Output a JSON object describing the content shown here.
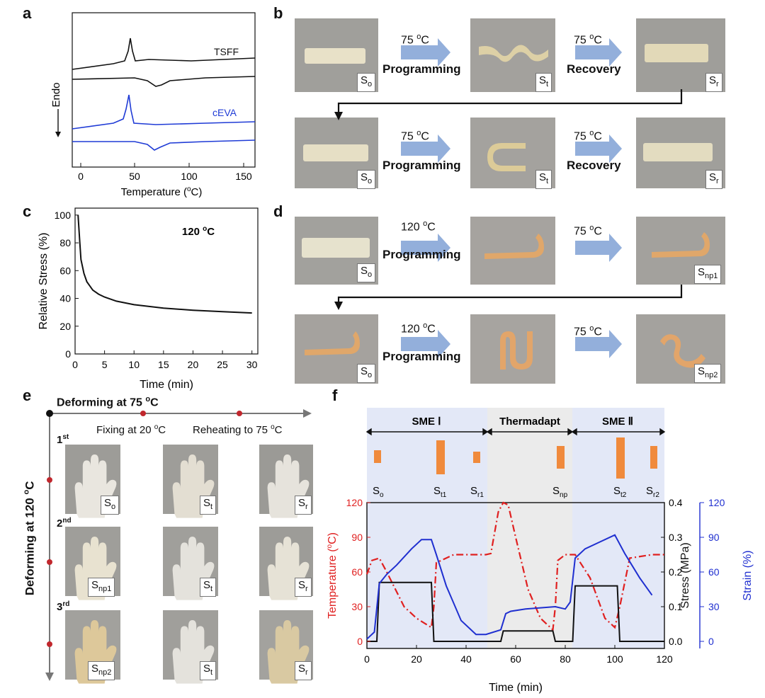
{
  "panel_letters": {
    "a": "a",
    "b": "b",
    "c": "c",
    "d": "d",
    "e": "e",
    "f": "f"
  },
  "panel_a": {
    "ylabel": "Endo",
    "xlabel": "Temperature (",
    "xlabel_unit": "C)",
    "xlabel_sup": "o",
    "curve_labels": [
      "TSFF",
      "cEVA"
    ],
    "x_ticks": [
      "0",
      "50",
      "100",
      "150"
    ],
    "colors": {
      "TSFF": "#111111",
      "cEVA": "#1f3bd6"
    }
  },
  "panel_b": {
    "temp": "75 ",
    "temp_unit": "C",
    "temp_sup": "o",
    "programming": "Programming",
    "recovery": "Recovery",
    "labels_row1": [
      "S",
      "S",
      "S"
    ],
    "subs_row1": [
      "o",
      "t",
      "r"
    ],
    "labels_row2": [
      "S",
      "S",
      "S"
    ],
    "subs_row2": [
      "o",
      "t",
      "r"
    ]
  },
  "panel_d": {
    "temp_prog": "120 ",
    "temp_rec": "75 ",
    "temp_unit": "C",
    "temp_sup": "o",
    "programming": "Programming",
    "subs_row1": [
      "o",
      "np1"
    ],
    "subs_row2": [
      "o",
      "np2"
    ],
    "S": "S"
  },
  "panel_e": {
    "deform75": "Deforming at 75 ",
    "deform120": "Deforming at 120 ",
    "unit": "C",
    "sup": "o",
    "fixing": "Fixing at 20 ",
    "reheating": "Reheating to 75 ",
    "rows": [
      "1",
      "2",
      "3"
    ],
    "row_sups": [
      "st",
      "nd",
      "rd"
    ],
    "S": "S",
    "subs": [
      [
        "o",
        "t",
        "r"
      ],
      [
        "np1",
        "t",
        "r"
      ],
      [
        "np2",
        "t",
        "r"
      ]
    ]
  },
  "panel_f": {
    "phases": [
      "SME Ⅰ",
      "Thermadapt",
      "SME Ⅱ"
    ],
    "state_labels": [
      "o",
      "t1",
      "r1",
      "np",
      "t2",
      "r2"
    ],
    "S": "S",
    "xlabel": "Time (min)",
    "ylabel_temp": "Temperature (",
    "ylabel_temp_unit": "C)",
    "ylabel_stress": "Stress (MPa)",
    "ylabel_strain": "Strain (%)",
    "sup": "o",
    "x_ticks": [
      "0",
      "20",
      "40",
      "60",
      "80",
      "100",
      "120"
    ],
    "temp_ticks": [
      "0",
      "30",
      "60",
      "90",
      "120"
    ],
    "stress_ticks": [
      "0.0",
      "0.1",
      "0.2",
      "0.3",
      "0.4"
    ],
    "strain_ticks": [
      "0",
      "30",
      "60",
      "90",
      "120"
    ],
    "colors": {
      "temperature": "#e02020",
      "stress": "#111111",
      "strain": "#1f2fd0",
      "phase_bg": "#e3e8f7"
    }
  },
  "chart_data": [
    {
      "type": "line",
      "title": "",
      "xlabel": "Temperature (oC)",
      "ylabel": "Endo",
      "xlim": [
        -8,
        152
      ],
      "series": [
        {
          "name": "TSFF",
          "x": [
            -8,
            30,
            40,
            44,
            46,
            48,
            52,
            60,
            100,
            152
          ],
          "y": [
            0,
            0.1,
            0.3,
            0.8,
            1.7,
            0.6,
            0.1,
            0.2,
            0.5,
            0.7
          ]
        },
        {
          "name": "cEVA",
          "x": [
            -8,
            30,
            40,
            43,
            45,
            47,
            50,
            60,
            100,
            152
          ],
          "y": [
            0,
            0.1,
            0.3,
            0.9,
            2.0,
            0.5,
            0.05,
            0.1,
            0.3,
            0.4
          ]
        }
      ]
    },
    {
      "type": "line",
      "title": "120 oC",
      "xlabel": "Time (min)",
      "ylabel": "Relative Stress (%)",
      "xlim": [
        0,
        31
      ],
      "ylim": [
        0,
        105
      ],
      "series": [
        {
          "name": "",
          "x": [
            0.5,
            0.8,
            1,
            1.5,
            2,
            3,
            4,
            5,
            7,
            10,
            15,
            20,
            25,
            30
          ],
          "y": [
            100,
            80,
            68,
            58,
            52,
            46,
            43,
            41,
            38,
            35.5,
            33,
            31.5,
            30.5,
            29.5
          ]
        }
      ],
      "x_ticks": [
        "0",
        "5",
        "10",
        "15",
        "20",
        "25",
        "30"
      ],
      "y_ticks": [
        "0",
        "20",
        "40",
        "60",
        "80",
        "100"
      ]
    },
    {
      "type": "line",
      "title": "",
      "xlabel": "Time (min)",
      "ylabel": "Temperature (oC) / Stress (MPa) / Strain (%)",
      "xlim": [
        0,
        120
      ],
      "series": [
        {
          "name": "Temperature",
          "x": [
            0,
            2,
            5,
            8,
            15,
            20,
            26,
            27,
            28,
            35,
            48,
            50,
            53,
            55,
            57,
            60,
            65,
            70,
            75,
            76,
            77,
            80,
            84,
            90,
            96,
            100,
            102,
            106,
            115,
            120
          ],
          "y": [
            58,
            70,
            72,
            60,
            30,
            20,
            12,
            30,
            68,
            75,
            75,
            76,
            112,
            120,
            118,
            90,
            45,
            20,
            10,
            30,
            70,
            75,
            75,
            55,
            20,
            12,
            30,
            72,
            75,
            75
          ]
        },
        {
          "name": "Stress",
          "x": [
            0,
            4,
            5,
            6,
            26,
            27,
            54,
            55,
            56,
            75,
            76,
            82,
            83,
            84,
            101,
            102,
            120
          ],
          "y": [
            0.0,
            0.0,
            0.17,
            0.17,
            0.17,
            0.0,
            0.0,
            0.03,
            0.03,
            0.03,
            0.0,
            0.0,
            0.0,
            0.16,
            0.16,
            0.0,
            0.0
          ]
        },
        {
          "name": "Strain",
          "x": [
            0,
            3,
            5,
            8,
            12,
            18,
            22,
            26,
            28,
            32,
            38,
            44,
            48,
            54,
            56,
            58,
            64,
            70,
            76,
            80,
            82,
            84,
            88,
            94,
            100,
            104,
            110,
            115
          ],
          "y": [
            2,
            8,
            50,
            58,
            66,
            80,
            88,
            88,
            75,
            48,
            18,
            6,
            6,
            10,
            24,
            26,
            28,
            29,
            30,
            28,
            34,
            72,
            80,
            86,
            92,
            76,
            55,
            40
          ]
        }
      ],
      "x_ticks": [
        "0",
        "20",
        "40",
        "60",
        "80",
        "100",
        "120"
      ]
    }
  ]
}
